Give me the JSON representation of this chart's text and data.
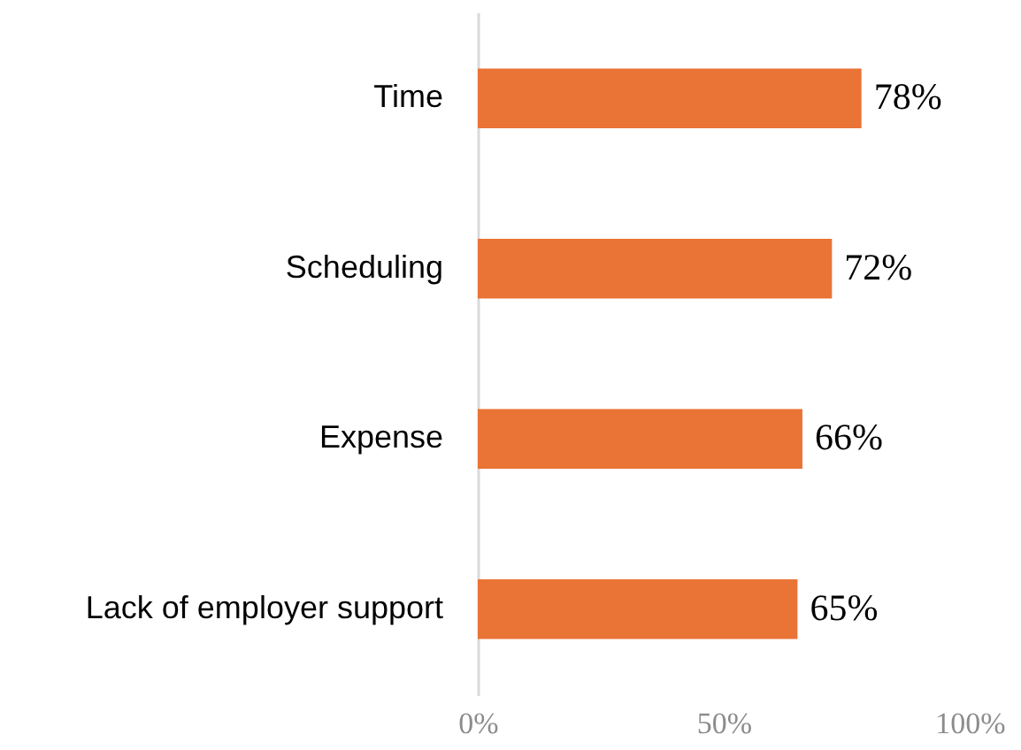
{
  "chart_data": {
    "type": "bar",
    "orientation": "horizontal",
    "categories": [
      "Time",
      "Scheduling",
      "Expense",
      "Lack of employer support"
    ],
    "values": [
      78,
      72,
      66,
      65
    ],
    "color": "#ea7336",
    "value_labels": [
      "78%",
      "72%",
      "66%",
      "65%"
    ],
    "xlim": [
      0,
      100
    ],
    "xticks": [
      {
        "value": 0,
        "label": "0%"
      },
      {
        "value": 50,
        "label": "50%"
      },
      {
        "value": 100,
        "label": "100%"
      }
    ],
    "grid": false
  }
}
